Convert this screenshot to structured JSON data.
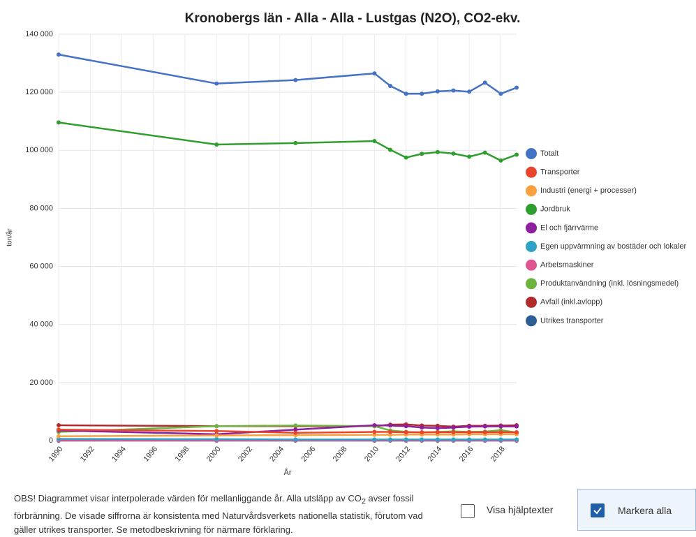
{
  "chart_data": {
    "type": "line",
    "title": "Kronobergs län - Alla - Alla - Lustgas (N2O), CO2-ekv.",
    "xlabel": "År",
    "ylabel": "ton/år",
    "x": [
      1990,
      2000,
      2005,
      2010,
      2011,
      2012,
      2013,
      2014,
      2015,
      2016,
      2017,
      2018,
      2019
    ],
    "xlim": [
      1990,
      2019
    ],
    "xticks": [
      1990,
      1992,
      1994,
      1996,
      1998,
      2000,
      2002,
      2004,
      2006,
      2008,
      2010,
      2012,
      2014,
      2016,
      2018
    ],
    "ylim": [
      0,
      140000
    ],
    "yticks": [
      {
        "value": 0,
        "label": "0"
      },
      {
        "value": 20000,
        "label": "20 000"
      },
      {
        "value": 40000,
        "label": "40 000"
      },
      {
        "value": 60000,
        "label": "60 000"
      },
      {
        "value": 80000,
        "label": "80 000"
      },
      {
        "value": 100000,
        "label": "100 000"
      },
      {
        "value": 120000,
        "label": "120 000"
      },
      {
        "value": 140000,
        "label": "140 000"
      }
    ],
    "grid": true,
    "legend": "right",
    "series": [
      {
        "name": "Totalt",
        "color": "#4472c4",
        "values": [
          133000,
          123000,
          124200,
          126500,
          122200,
          119500,
          119500,
          120300,
          120600,
          120200,
          123300,
          119500,
          121600
        ]
      },
      {
        "name": "Transporter",
        "color": "#e8452c",
        "values": [
          3800,
          3300,
          2700,
          3000,
          3000,
          2900,
          2900,
          2900,
          2900,
          2900,
          2900,
          2900,
          2900
        ]
      },
      {
        "name": "Industri (energi + processer)",
        "color": "#f9a03f",
        "values": [
          1500,
          1800,
          1900,
          2000,
          2000,
          2100,
          2100,
          2100,
          2100,
          2200,
          2200,
          2200,
          2200
        ]
      },
      {
        "name": "Jordbruk",
        "color": "#2e9e2e",
        "values": [
          109600,
          102000,
          102500,
          103200,
          100200,
          97500,
          98800,
          99400,
          98900,
          97800,
          99200,
          96500,
          98500
        ]
      },
      {
        "name": "El och fjärrvärme",
        "color": "#8e1f9e",
        "values": [
          3500,
          2200,
          3800,
          5300,
          5200,
          5000,
          4500,
          4300,
          4500,
          4800,
          4900,
          4900,
          4900
        ]
      },
      {
        "name": "Egen uppvärmning av bostäder och lokaler",
        "color": "#2ea3c7",
        "values": [
          600,
          500,
          400,
          400,
          400,
          400,
          400,
          400,
          400,
          400,
          400,
          400,
          400
        ]
      },
      {
        "name": "Arbetsmaskiner",
        "color": "#e05590",
        "values": [
          100,
          100,
          100,
          100,
          100,
          100,
          100,
          100,
          100,
          100,
          100,
          100,
          100
        ]
      },
      {
        "name": "Produktanvändning (inkl. lösningsmedel)",
        "color": "#6cb33f",
        "values": [
          3000,
          5000,
          5200,
          5000,
          3500,
          3000,
          2800,
          3000,
          3200,
          3000,
          3100,
          3600,
          2800
        ]
      },
      {
        "name": "Avfall (inkl.avlopp)",
        "color": "#b22b2b",
        "values": [
          5300,
          5000,
          5000,
          5000,
          5500,
          5600,
          5200,
          5100,
          4800,
          5100,
          5100,
          5200,
          5300
        ]
      },
      {
        "name": "Utrikes transporter",
        "color": "#2f5e96",
        "values": [
          0,
          0,
          0,
          0,
          0,
          0,
          0,
          0,
          0,
          0,
          0,
          0,
          0
        ]
      }
    ]
  },
  "note": [
    "OBS! Diagrammet visar interpolerade värden för mellanliggande år. Alla utsläpp av CO",
    "2",
    " avser fossil förbränning. De visade siffrorna är konsistenta med Naturvårdsverkets nationella statistik, förutom vad gäller utrikes transporter. Se metodbeskrivning för närmare förklaring."
  ],
  "controls": {
    "help": "Visa hjälptexter",
    "select_all": "Markera alla"
  }
}
